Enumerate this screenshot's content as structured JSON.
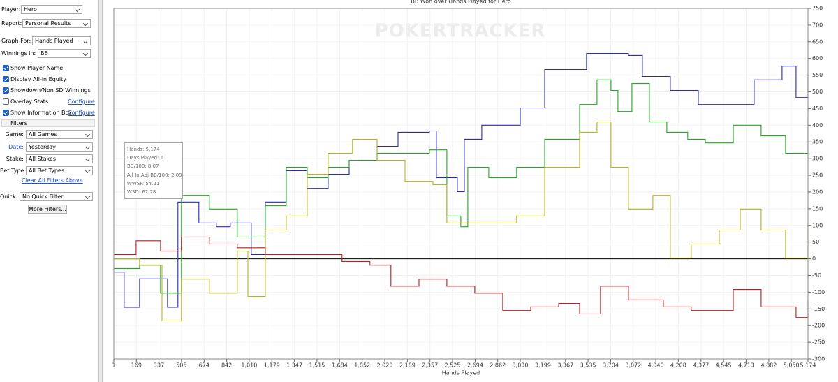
{
  "panel": {
    "top": [
      {
        "label": "Player:",
        "value": "Hero"
      },
      {
        "label": "Report:",
        "value": "Personal Results"
      },
      {
        "label": "Graph For:",
        "value": "Hands Played"
      },
      {
        "label": "Winnings in:",
        "value": "BB"
      }
    ],
    "options": [
      {
        "label": "Show Player Name",
        "checked": true
      },
      {
        "label": "Display All-in Equity",
        "checked": true
      },
      {
        "label": "Showdown/Non SD Winnings",
        "checked": true
      },
      {
        "label": "Overlay Stats",
        "checked": false,
        "link": "Configure"
      },
      {
        "label": "Show Information Box",
        "checked": true,
        "link": "Configure"
      }
    ],
    "filters_header": "Filters",
    "filters": [
      {
        "label": "Game:",
        "value": "All Games"
      },
      {
        "label": "Date:",
        "value": "Yesterday",
        "active": true
      },
      {
        "label": "Stake:",
        "value": "All Stakes"
      },
      {
        "label": "Bet Type:",
        "value": "All Bet Types"
      }
    ],
    "clear_link": "Clear All Filters Above",
    "quick": {
      "label": "Quick:",
      "value": "No Quick Filter"
    },
    "more_button": "More Filters..."
  },
  "chart_data": {
    "type": "line",
    "title": "BB Won over Hands Played for Hero",
    "watermark": "POKERTRACKER",
    "x_label": "Hands Played",
    "xlim": [
      1,
      5174
    ],
    "xticks": [
      1,
      169,
      337,
      505,
      674,
      842,
      {
        "value": 1010,
        "label": "1,010"
      },
      {
        "value": 1179,
        "label": "1,179"
      },
      {
        "value": 1347,
        "label": "1,347"
      },
      {
        "value": 1515,
        "label": "1,515"
      },
      {
        "value": 1684,
        "label": "1,684"
      },
      {
        "value": 1852,
        "label": "1,852"
      },
      {
        "value": 2020,
        "label": "2,020"
      },
      {
        "value": 2189,
        "label": "2,189"
      },
      {
        "value": 2357,
        "label": "2,357"
      },
      {
        "value": 2525,
        "label": "2,525"
      },
      {
        "value": 2694,
        "label": "2,694"
      },
      {
        "value": 2862,
        "label": "2,862"
      },
      {
        "value": 3030,
        "label": "3,030"
      },
      {
        "value": 3199,
        "label": "3,199"
      },
      {
        "value": 3367,
        "label": "3,367"
      },
      {
        "value": 3535,
        "label": "3,535"
      },
      {
        "value": 3704,
        "label": "3,704"
      },
      {
        "value": 3872,
        "label": "3,872"
      },
      {
        "value": 4040,
        "label": "4,040"
      },
      {
        "value": 4208,
        "label": "4,208"
      },
      {
        "value": 4377,
        "label": "4,377"
      },
      {
        "value": 4545,
        "label": "4,545"
      },
      {
        "value": 4713,
        "label": "4,713"
      },
      {
        "value": 4882,
        "label": "4,882"
      },
      {
        "value": 5050,
        "label": "5,050"
      },
      {
        "value": 5174,
        "label": "5,174"
      }
    ],
    "ylim": [
      -300,
      750
    ],
    "yticks": [
      -300,
      -250,
      -200,
      -150,
      -100,
      -50,
      0,
      50,
      100,
      150,
      200,
      250,
      300,
      350,
      400,
      450,
      500,
      550,
      600,
      650,
      700,
      750
    ],
    "grid": true,
    "series": [
      {
        "color": "#2b2bb5",
        "x": [
          1,
          78,
          193,
          401,
          479,
          635,
          765,
          869,
          1025,
          1130,
          1286,
          1442,
          1598,
          1755,
          1963,
          2119,
          2353,
          2405,
          2561,
          2613,
          2743,
          3030,
          3212,
          3524,
          3732,
          3836,
          3940,
          4148,
          4357,
          4565,
          4773,
          4981,
          5085,
          5174
        ],
        "values": [
          -40,
          -145,
          -60,
          -145,
          170,
          107,
          96,
          107,
          13,
          170,
          264,
          211,
          253,
          295,
          337,
          379,
          383,
          243,
          201,
          358,
          400,
          452,
          567,
          615,
          615,
          609,
          546,
          504,
          462,
          462,
          536,
          577,
          483,
          556
        ]
      },
      {
        "color": "#1faa1f",
        "x": [
          1,
          193,
          349,
          505,
          713,
          921,
          1130,
          1286,
          1442,
          1598,
          1755,
          1963,
          2171,
          2353,
          2483,
          2587,
          2639,
          2795,
          3003,
          3212,
          3472,
          3602,
          3706,
          3758,
          3862,
          3992,
          4122,
          4278,
          4409,
          4617,
          4825,
          5007,
          5174
        ],
        "values": [
          -29,
          -19,
          -103,
          190,
          149,
          65,
          159,
          274,
          243,
          274,
          295,
          316,
          316,
          326,
          128,
          96,
          274,
          243,
          274,
          358,
          462,
          536,
          504,
          441,
          525,
          410,
          379,
          358,
          347,
          400,
          368,
          316,
          421
        ]
      },
      {
        "color": "#b5b520",
        "x": [
          1,
          193,
          360,
          505,
          713,
          921,
          1000,
          1130,
          1286,
          1442,
          1598,
          1780,
          1963,
          2171,
          2379,
          2483,
          2639,
          2795,
          3003,
          3212,
          3472,
          3602,
          3706,
          3836,
          4018,
          4148,
          4304,
          4513,
          4669,
          4825,
          5007,
          5174
        ],
        "values": [
          0,
          -19,
          -186,
          -61,
          -103,
          23,
          -113,
          86,
          128,
          253,
          316,
          358,
          295,
          232,
          222,
          107,
          107,
          107,
          128,
          274,
          379,
          410,
          274,
          149,
          190,
          2,
          44,
          86,
          149,
          86,
          2,
          107
        ]
      },
      {
        "color": "#b51f1f",
        "x": [
          1,
          167,
          349,
          505,
          713,
          921,
          1130,
          1390,
          1702,
          1910,
          2066,
          2275,
          2483,
          2691,
          2899,
          3108,
          3316,
          3472,
          3628,
          3836,
          4096,
          4304,
          4617,
          4825,
          5085,
          5174
        ],
        "values": [
          13,
          54,
          23,
          65,
          44,
          33,
          13,
          13,
          -8,
          -19,
          -82,
          -61,
          -82,
          -103,
          -155,
          -144,
          -134,
          -165,
          -82,
          -123,
          -144,
          -155,
          -92,
          -144,
          -176,
          -123
        ]
      }
    ],
    "info_box": [
      "Hands: 5,174",
      "Days Played: 1",
      "BB/100: 8.07",
      "All-In Adj BB/100: 2.09",
      "WWSF: 54.21",
      "WSD: 62.78"
    ]
  }
}
